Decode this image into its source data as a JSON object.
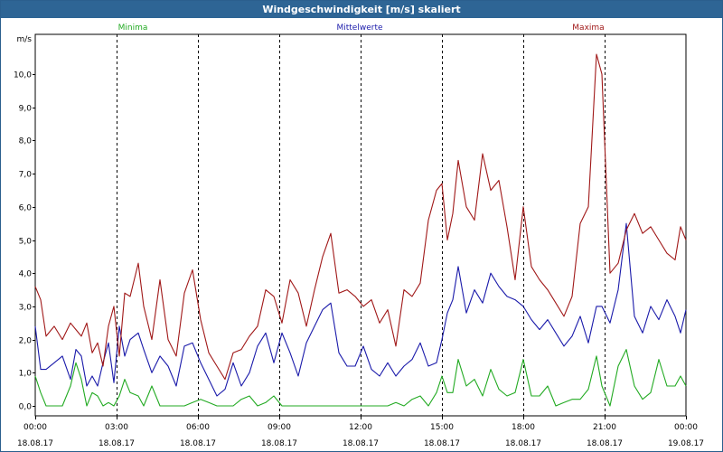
{
  "window": {
    "title": "Windgeschwindigkeit [m/s] skaliert"
  },
  "chart_data": {
    "type": "line",
    "ylabel": "m/s",
    "ylim": [
      -0.3,
      11.2
    ],
    "xlim": [
      0,
      24
    ],
    "grid": true,
    "yticks": [
      "10,0",
      "9,0",
      "8,0",
      "7,0",
      "6,0",
      "5,0",
      "4,0",
      "3,0",
      "2,0",
      "1,0",
      "0,0"
    ],
    "ytick_values": [
      10,
      9,
      8,
      7,
      6,
      5,
      4,
      3,
      2,
      1,
      0
    ],
    "xticks": [
      {
        "time": "00:00",
        "date": "18.08.17",
        "h": 0
      },
      {
        "time": "03:00",
        "date": "18.08.17",
        "h": 3
      },
      {
        "time": "06:00",
        "date": "18.08.17",
        "h": 6
      },
      {
        "time": "09:00",
        "date": "18.08.17",
        "h": 9
      },
      {
        "time": "12:00",
        "date": "18.08.17",
        "h": 12
      },
      {
        "time": "15:00",
        "date": "18.08.17",
        "h": 15
      },
      {
        "time": "18:00",
        "date": "18.08.17",
        "h": 18
      },
      {
        "time": "21:00",
        "date": "18.08.17",
        "h": 21
      },
      {
        "time": "00:00",
        "date": "19.08.17",
        "h": 24
      }
    ],
    "legend_placement": "top",
    "series": [
      {
        "name": "Minima",
        "color": "#22aa22",
        "x": [
          0,
          0.2,
          0.4,
          0.7,
          1.0,
          1.3,
          1.5,
          1.7,
          1.9,
          2.1,
          2.3,
          2.5,
          2.7,
          2.9,
          3.1,
          3.3,
          3.5,
          3.8,
          4.0,
          4.3,
          4.6,
          4.9,
          5.2,
          5.5,
          5.8,
          6.1,
          6.4,
          6.7,
          7.0,
          7.3,
          7.6,
          7.9,
          8.2,
          8.5,
          8.8,
          9.1,
          9.4,
          9.7,
          10.0,
          10.3,
          10.6,
          10.9,
          11.2,
          11.5,
          11.8,
          12.1,
          12.4,
          12.7,
          13.0,
          13.3,
          13.6,
          13.9,
          14.2,
          14.5,
          14.8,
          15.0,
          15.2,
          15.4,
          15.6,
          15.9,
          16.2,
          16.5,
          16.8,
          17.1,
          17.4,
          17.7,
          18.0,
          18.3,
          18.6,
          18.9,
          19.2,
          19.5,
          19.8,
          20.1,
          20.4,
          20.7,
          20.9,
          21.2,
          21.5,
          21.8,
          22.1,
          22.4,
          22.7,
          23.0,
          23.3,
          23.6,
          23.8,
          24.0
        ],
        "y": [
          0.9,
          0.4,
          0.0,
          0.0,
          0.0,
          0.6,
          1.3,
          0.8,
          0.0,
          0.4,
          0.3,
          0.0,
          0.1,
          0.0,
          0.3,
          0.8,
          0.4,
          0.3,
          0.0,
          0.6,
          0.0,
          0.0,
          0.0,
          0.0,
          0.1,
          0.2,
          0.1,
          0.0,
          0.0,
          0.0,
          0.2,
          0.3,
          0.0,
          0.1,
          0.3,
          0.0,
          0.0,
          0.0,
          0.0,
          0.0,
          0.0,
          0.0,
          0.0,
          0.0,
          0.0,
          0.0,
          0.0,
          0.0,
          0.0,
          0.1,
          0.0,
          0.2,
          0.3,
          0.0,
          0.4,
          0.9,
          0.4,
          0.4,
          1.4,
          0.6,
          0.8,
          0.3,
          1.1,
          0.5,
          0.3,
          0.4,
          1.4,
          0.3,
          0.3,
          0.6,
          0.0,
          0.1,
          0.2,
          0.2,
          0.5,
          1.5,
          0.6,
          0.0,
          1.2,
          1.7,
          0.6,
          0.2,
          0.4,
          1.4,
          0.6,
          0.6,
          0.9,
          0.6
        ]
      },
      {
        "name": "Mittelwerte",
        "color": "#1a1aaa",
        "x": [
          0,
          0.2,
          0.4,
          0.7,
          1.0,
          1.3,
          1.5,
          1.7,
          1.9,
          2.1,
          2.3,
          2.5,
          2.7,
          2.9,
          3.1,
          3.3,
          3.5,
          3.8,
          4.0,
          4.3,
          4.6,
          4.9,
          5.2,
          5.5,
          5.8,
          6.1,
          6.4,
          6.7,
          7.0,
          7.3,
          7.6,
          7.9,
          8.2,
          8.5,
          8.8,
          9.1,
          9.4,
          9.7,
          10.0,
          10.3,
          10.6,
          10.9,
          11.2,
          11.5,
          11.8,
          12.1,
          12.4,
          12.7,
          13.0,
          13.3,
          13.6,
          13.9,
          14.2,
          14.5,
          14.8,
          15.0,
          15.2,
          15.4,
          15.6,
          15.9,
          16.2,
          16.5,
          16.8,
          17.1,
          17.4,
          17.7,
          18.0,
          18.3,
          18.6,
          18.9,
          19.2,
          19.5,
          19.8,
          20.1,
          20.4,
          20.7,
          20.9,
          21.2,
          21.5,
          21.8,
          22.1,
          22.4,
          22.7,
          23.0,
          23.3,
          23.6,
          23.8,
          24.0
        ],
        "y": [
          2.4,
          1.1,
          1.1,
          1.3,
          1.5,
          0.8,
          1.7,
          1.5,
          0.6,
          0.9,
          0.6,
          1.3,
          1.9,
          0.7,
          2.4,
          1.5,
          2.0,
          2.2,
          1.7,
          1.0,
          1.5,
          1.2,
          0.6,
          1.8,
          1.9,
          1.3,
          0.8,
          0.3,
          0.5,
          1.3,
          0.6,
          1.0,
          1.8,
          2.2,
          1.3,
          2.2,
          1.6,
          0.9,
          1.9,
          2.4,
          2.9,
          3.1,
          1.6,
          1.2,
          1.2,
          1.8,
          1.1,
          0.9,
          1.3,
          0.9,
          1.2,
          1.4,
          1.9,
          1.2,
          1.3,
          2.0,
          2.8,
          3.2,
          4.2,
          2.8,
          3.5,
          3.1,
          4.0,
          3.6,
          3.3,
          3.2,
          3.0,
          2.6,
          2.3,
          2.6,
          2.2,
          1.8,
          2.1,
          2.7,
          1.9,
          3.0,
          3.0,
          2.5,
          3.5,
          5.5,
          2.7,
          2.2,
          3.0,
          2.6,
          3.2,
          2.7,
          2.2,
          2.9
        ]
      },
      {
        "name": "Maxima",
        "color": "#a01818",
        "x": [
          0,
          0.2,
          0.4,
          0.7,
          1.0,
          1.3,
          1.5,
          1.7,
          1.9,
          2.1,
          2.3,
          2.5,
          2.7,
          2.9,
          3.1,
          3.3,
          3.5,
          3.8,
          4.0,
          4.3,
          4.6,
          4.9,
          5.2,
          5.5,
          5.8,
          6.1,
          6.4,
          6.7,
          7.0,
          7.3,
          7.6,
          7.9,
          8.2,
          8.5,
          8.8,
          9.1,
          9.4,
          9.7,
          10.0,
          10.3,
          10.6,
          10.9,
          11.2,
          11.5,
          11.8,
          12.1,
          12.4,
          12.7,
          13.0,
          13.3,
          13.6,
          13.9,
          14.2,
          14.5,
          14.8,
          15.0,
          15.2,
          15.4,
          15.6,
          15.9,
          16.2,
          16.5,
          16.8,
          17.1,
          17.4,
          17.7,
          18.0,
          18.3,
          18.6,
          18.9,
          19.2,
          19.5,
          19.8,
          20.1,
          20.4,
          20.7,
          20.9,
          21.2,
          21.5,
          21.8,
          22.1,
          22.4,
          22.7,
          23.0,
          23.3,
          23.6,
          23.8,
          24.0
        ],
        "y": [
          3.6,
          3.2,
          2.1,
          2.4,
          2.0,
          2.5,
          2.3,
          2.1,
          2.5,
          1.6,
          1.9,
          1.2,
          2.4,
          3.0,
          1.5,
          3.4,
          3.3,
          4.3,
          3.0,
          2.0,
          3.8,
          2.0,
          1.5,
          3.4,
          4.1,
          2.6,
          1.6,
          1.2,
          0.8,
          1.6,
          1.7,
          2.1,
          2.4,
          3.5,
          3.3,
          2.5,
          3.8,
          3.4,
          2.4,
          3.5,
          4.5,
          5.2,
          3.4,
          3.5,
          3.3,
          3.0,
          3.2,
          2.5,
          2.9,
          1.8,
          3.5,
          3.3,
          3.7,
          5.6,
          6.5,
          6.7,
          5.0,
          5.8,
          7.4,
          6.0,
          5.6,
          7.6,
          6.5,
          6.8,
          5.4,
          3.8,
          6.0,
          4.2,
          3.8,
          3.5,
          3.1,
          2.7,
          3.3,
          5.5,
          6.0,
          10.6,
          10.0,
          4.0,
          4.3,
          5.3,
          5.8,
          5.2,
          5.4,
          5.0,
          4.6,
          4.4,
          5.4,
          5.0
        ]
      }
    ]
  }
}
